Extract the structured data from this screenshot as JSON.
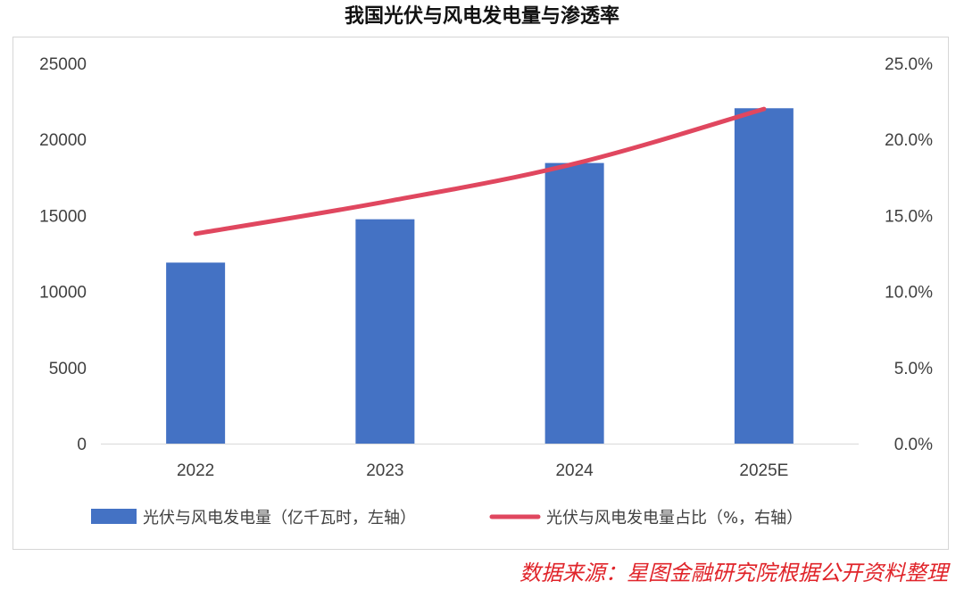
{
  "chart_data": {
    "type": "bar",
    "title": "我国光伏与风电发电量与渗透率",
    "categories": [
      "2022",
      "2023",
      "2024",
      "2025E"
    ],
    "series": [
      {
        "name": "光伏与风电发电量（亿千瓦时，左轴）",
        "type": "bar",
        "axis": "left",
        "values": [
          11900,
          14750,
          18450,
          22050
        ],
        "color": "#4472c4"
      },
      {
        "name": "光伏与风电发电量占比（%，右轴）",
        "type": "line",
        "axis": "right",
        "values": [
          13.8,
          15.9,
          18.4,
          22.0
        ],
        "color": "#e0475f"
      }
    ],
    "y_left": {
      "min": 0,
      "max": 25000,
      "ticks": [
        0,
        5000,
        10000,
        15000,
        20000,
        25000
      ],
      "tick_labels": [
        "0",
        "5000",
        "10000",
        "15000",
        "20000",
        "25000"
      ]
    },
    "y_right": {
      "min": 0,
      "max": 25,
      "ticks": [
        0,
        5,
        10,
        15,
        20,
        25
      ],
      "tick_labels": [
        "0.0%",
        "5.0%",
        "10.0%",
        "15.0%",
        "20.0%",
        "25.0%"
      ]
    },
    "grid": false,
    "legend_position": "bottom"
  },
  "source_note": "数据来源：星图金融研究院根据公开资料整理"
}
